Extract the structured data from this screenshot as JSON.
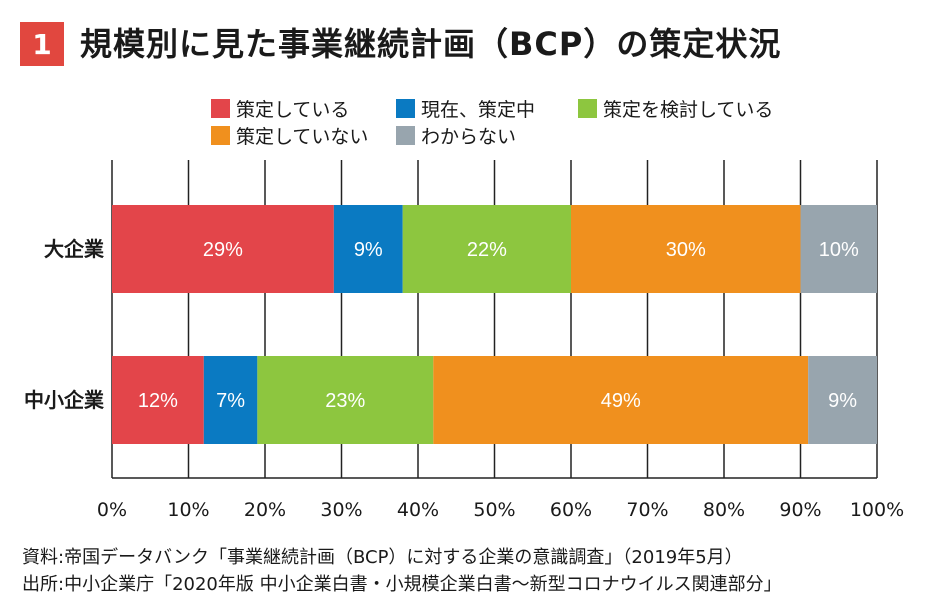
{
  "title": {
    "badge": "1",
    "text": "規模別に見た事業継続計画（BCP）の策定状況"
  },
  "legend": [
    {
      "label": "策定している",
      "color": "#e3454a"
    },
    {
      "label": "現在、策定中",
      "color": "#0a7ac2"
    },
    {
      "label": "策定を検討している",
      "color": "#8dc63f"
    },
    {
      "label": "策定していない",
      "color": "#f0901e"
    },
    {
      "label": "わからない",
      "color": "#98a5ae"
    }
  ],
  "chart_data": {
    "type": "bar",
    "orientation": "horizontal",
    "stacked": true,
    "categories": [
      "大企業",
      "中小企業"
    ],
    "series": [
      {
        "name": "策定している",
        "color": "#e3454a",
        "values": [
          29,
          12
        ],
        "labels": [
          "29%",
          "12%"
        ]
      },
      {
        "name": "現在、策定中",
        "color": "#0a7ac2",
        "values": [
          9,
          7
        ],
        "labels": [
          "9%",
          "7%"
        ]
      },
      {
        "name": "策定を検討している",
        "color": "#8dc63f",
        "values": [
          22,
          23
        ],
        "labels": [
          "22%",
          "23%"
        ]
      },
      {
        "name": "策定していない",
        "color": "#f0901e",
        "values": [
          30,
          49
        ],
        "labels": [
          "30%",
          "49%"
        ]
      },
      {
        "name": "わからない",
        "color": "#98a5ae",
        "values": [
          10,
          9
        ],
        "labels": [
          "10%",
          "9%"
        ]
      }
    ],
    "xlim": [
      0,
      100
    ],
    "x_ticks": [
      "0%",
      "10%",
      "20%",
      "30%",
      "40%",
      "50%",
      "60%",
      "70%",
      "80%",
      "90%",
      "100%"
    ],
    "grid": "vertical",
    "legend_position": "top"
  },
  "footer": {
    "source1": "資料:帝国データバンク「事業継続計画（BCP）に対する企業の意識調査」（2019年5月）",
    "source2": "出所:中小企業庁「2020年版 中小企業白書・小規模企業白書～新型コロナウイルス関連部分」"
  }
}
